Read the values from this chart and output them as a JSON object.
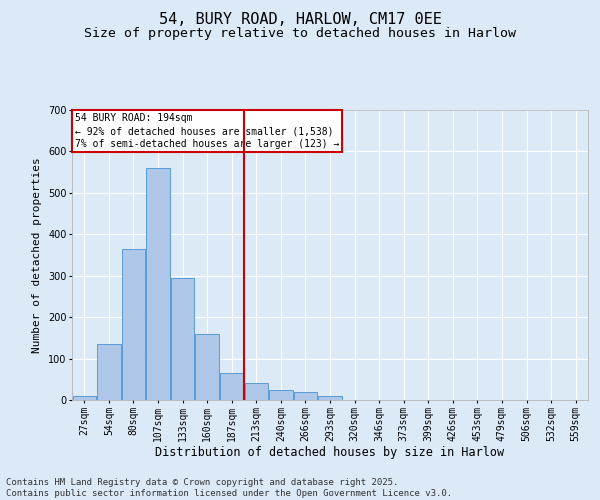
{
  "title": "54, BURY ROAD, HARLOW, CM17 0EE",
  "subtitle": "Size of property relative to detached houses in Harlow",
  "xlabel": "Distribution of detached houses by size in Harlow",
  "ylabel": "Number of detached properties",
  "footer_line1": "Contains HM Land Registry data © Crown copyright and database right 2025.",
  "footer_line2": "Contains public sector information licensed under the Open Government Licence v3.0.",
  "annotation_title": "54 BURY ROAD: 194sqm",
  "annotation_line1": "← 92% of detached houses are smaller (1,538)",
  "annotation_line2": "7% of semi-detached houses are larger (123) →",
  "bar_labels": [
    "27sqm",
    "54sqm",
    "80sqm",
    "107sqm",
    "133sqm",
    "160sqm",
    "187sqm",
    "213sqm",
    "240sqm",
    "266sqm",
    "293sqm",
    "320sqm",
    "346sqm",
    "373sqm",
    "399sqm",
    "426sqm",
    "453sqm",
    "479sqm",
    "506sqm",
    "532sqm",
    "559sqm"
  ],
  "bar_values": [
    10,
    135,
    365,
    560,
    295,
    160,
    65,
    40,
    25,
    20,
    10,
    0,
    0,
    0,
    0,
    0,
    0,
    0,
    0,
    0,
    0
  ],
  "bar_color": "#aec6e8",
  "bar_edge_color": "#5b9bd5",
  "vline_x_index": 6.5,
  "vline_color": "#cc0000",
  "annotation_box_color": "#cc0000",
  "background_color": "#dce9f7",
  "ylim": [
    0,
    700
  ],
  "yticks": [
    0,
    100,
    200,
    300,
    400,
    500,
    600,
    700
  ],
  "grid_color": "#ffffff",
  "title_fontsize": 11,
  "subtitle_fontsize": 9.5,
  "xlabel_fontsize": 8.5,
  "ylabel_fontsize": 8,
  "tick_fontsize": 7,
  "annotation_fontsize": 7,
  "footer_fontsize": 6.5
}
